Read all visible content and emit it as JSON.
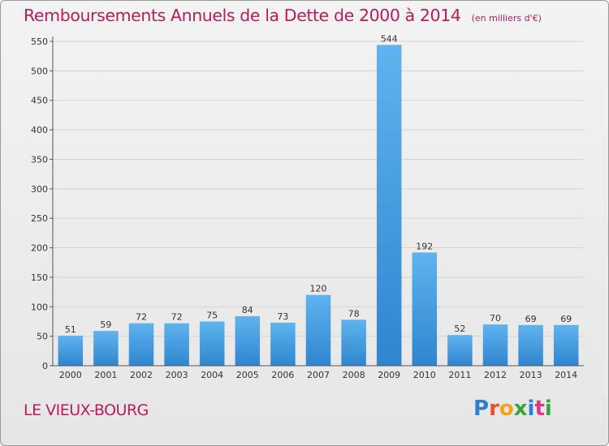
{
  "chart_data": {
    "type": "bar",
    "title": "Remboursements Annuels de la Dette de 2000 à 2014",
    "subtitle": "(en milliers d'€)",
    "categories": [
      "2000",
      "2001",
      "2002",
      "2003",
      "2004",
      "2005",
      "2006",
      "2007",
      "2008",
      "2009",
      "2010",
      "2011",
      "2012",
      "2013",
      "2014"
    ],
    "values": [
      51,
      59,
      72,
      72,
      75,
      84,
      73,
      120,
      78,
      544,
      192,
      52,
      70,
      69,
      69
    ],
    "ylim": [
      0,
      550
    ],
    "yticks": [
      0,
      50,
      100,
      150,
      200,
      250,
      300,
      350,
      400,
      450,
      500,
      550
    ],
    "grid": true,
    "bar_color": "#3f9ee3"
  },
  "footer": {
    "town": "LE VIEUX-BOURG",
    "logo_text": "Proxiti",
    "logo_colors": [
      "#2f7fd1",
      "#e8502f",
      "#f2a320",
      "#3aa53a",
      "#2f7fd1",
      "#d93a8a",
      "#3aa53a"
    ]
  },
  "colors": {
    "title": "#b81c5e",
    "grid": "#d4d4d4"
  }
}
